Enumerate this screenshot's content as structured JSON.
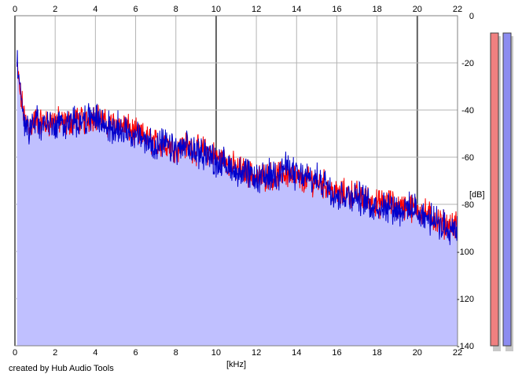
{
  "credit": "created by Hub Audio Tools",
  "chart_data": {
    "type": "area",
    "xlabel": "[kHz]",
    "ylabel": "[dB]",
    "xlim": [
      0,
      22
    ],
    "ylim": [
      -140,
      0
    ],
    "x_ticks": [
      0,
      2,
      4,
      6,
      8,
      10,
      12,
      14,
      16,
      18,
      20,
      22
    ],
    "y_ticks": [
      0,
      -20,
      -40,
      -60,
      -80,
      -100,
      -120,
      -140
    ],
    "grid": true,
    "colors": {
      "left": "#ff0000",
      "right": "#0000cc",
      "fill": "#c0c0ff",
      "meter_left": "#f08080",
      "meter_right": "#8c8cf0"
    },
    "series": [
      {
        "channel": "left",
        "x": [
          0.1,
          0.3,
          0.5,
          0.8,
          1,
          1.5,
          2,
          2.5,
          3,
          3.5,
          4,
          4.5,
          5,
          5.5,
          6,
          6.5,
          7,
          7.5,
          8,
          8.5,
          9,
          9.5,
          10,
          10.5,
          11,
          11.5,
          12,
          12.5,
          13,
          13.5,
          14,
          14.5,
          15,
          15.5,
          16,
          16.5,
          17,
          17.5,
          18,
          18.5,
          19,
          19.5,
          20,
          20.5,
          21,
          21.5,
          22
        ],
        "values": [
          -22,
          -35,
          -44,
          -47,
          -44,
          -46,
          -44,
          -46,
          -44,
          -45,
          -42,
          -46,
          -46,
          -47,
          -50,
          -52,
          -54,
          -54,
          -56,
          -55,
          -57,
          -57,
          -60,
          -61,
          -65,
          -66,
          -69,
          -68,
          -68,
          -67,
          -69,
          -70,
          -70,
          -72,
          -76,
          -75,
          -76,
          -78,
          -80,
          -79,
          -81,
          -81,
          -82,
          -84,
          -87,
          -89,
          -89
        ]
      },
      {
        "channel": "right",
        "x": [
          0.1,
          0.3,
          0.5,
          0.8,
          1,
          1.5,
          2,
          2.5,
          3,
          3.5,
          4,
          4.5,
          5,
          5.5,
          6,
          6.5,
          7,
          7.5,
          8,
          8.5,
          9,
          9.5,
          10,
          10.5,
          11,
          11.5,
          12,
          12.5,
          13,
          13.5,
          14,
          14.5,
          15,
          15.5,
          16,
          16.5,
          17,
          17.5,
          18,
          18.5,
          19,
          19.5,
          20,
          20.5,
          21,
          21.5,
          22
        ],
        "values": [
          -18,
          -34,
          -46,
          -48,
          -45,
          -47,
          -46,
          -45,
          -45,
          -44,
          -43,
          -47,
          -48,
          -48,
          -51,
          -53,
          -55,
          -55,
          -57,
          -56,
          -58,
          -58,
          -62,
          -63,
          -66,
          -67,
          -70,
          -68,
          -67,
          -64,
          -68,
          -69,
          -70,
          -71,
          -76,
          -76,
          -77,
          -79,
          -81,
          -80,
          -82,
          -82,
          -83,
          -86,
          -88,
          -90,
          -90
        ]
      }
    ],
    "meters": [
      {
        "channel": "left",
        "level_db": -140
      },
      {
        "channel": "right",
        "level_db": -140
      }
    ]
  }
}
